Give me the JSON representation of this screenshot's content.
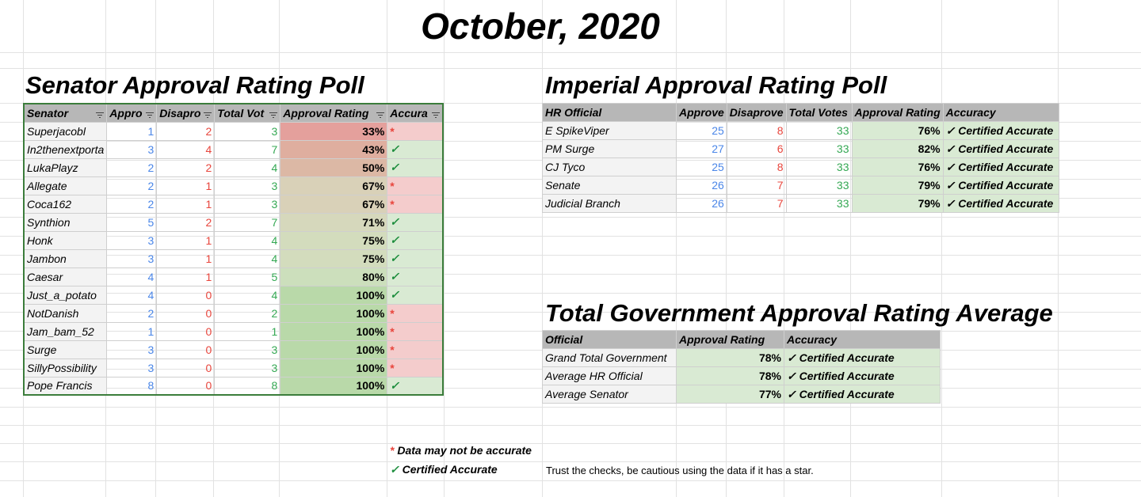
{
  "title": "October, 2020",
  "senate": {
    "heading": "Senator Approval Rating Poll",
    "columns": [
      "Senator",
      "Appro",
      "Disapro",
      "Total Vot",
      "Approval Rating",
      "Accura"
    ],
    "rows": [
      {
        "name": "Superjacobl",
        "approve": "1",
        "disapprove": "2",
        "total": "3",
        "rating": "33%",
        "acc": "*",
        "rating_color": "#e4a09c"
      },
      {
        "name": "In2thenextporta",
        "approve": "3",
        "disapprove": "4",
        "total": "7",
        "rating": "43%",
        "acc": "✓",
        "rating_color": "#dfae9f"
      },
      {
        "name": "LukaPlayz",
        "approve": "2",
        "disapprove": "2",
        "total": "4",
        "rating": "50%",
        "acc": "✓",
        "rating_color": "#dcb8a5"
      },
      {
        "name": "Allegate",
        "approve": "2",
        "disapprove": "1",
        "total": "3",
        "rating": "67%",
        "acc": "*",
        "rating_color": "#d9d1b8"
      },
      {
        "name": "Coca162",
        "approve": "2",
        "disapprove": "1",
        "total": "3",
        "rating": "67%",
        "acc": "*",
        "rating_color": "#d9d1b8"
      },
      {
        "name": "Synthion",
        "approve": "5",
        "disapprove": "2",
        "total": "7",
        "rating": "71%",
        "acc": "✓",
        "rating_color": "#d6d8bc"
      },
      {
        "name": "Honk",
        "approve": "3",
        "disapprove": "1",
        "total": "4",
        "rating": "75%",
        "acc": "✓",
        "rating_color": "#d3dcbd"
      },
      {
        "name": "Jambon",
        "approve": "3",
        "disapprove": "1",
        "total": "4",
        "rating": "75%",
        "acc": "✓",
        "rating_color": "#d3dcbd"
      },
      {
        "name": "Caesar",
        "approve": "4",
        "disapprove": "1",
        "total": "5",
        "rating": "80%",
        "acc": "✓",
        "rating_color": "#ccdfbc"
      },
      {
        "name": "Just_a_potato",
        "approve": "4",
        "disapprove": "0",
        "total": "4",
        "rating": "100%",
        "acc": "✓",
        "rating_color": "#b9d9a9"
      },
      {
        "name": "NotDanish",
        "approve": "2",
        "disapprove": "0",
        "total": "2",
        "rating": "100%",
        "acc": "*",
        "rating_color": "#b9d9a9"
      },
      {
        "name": "Jam_bam_52",
        "approve": "1",
        "disapprove": "0",
        "total": "1",
        "rating": "100%",
        "acc": "*",
        "rating_color": "#b9d9a9"
      },
      {
        "name": "Surge",
        "approve": "3",
        "disapprove": "0",
        "total": "3",
        "rating": "100%",
        "acc": "*",
        "rating_color": "#b9d9a9"
      },
      {
        "name": "SillyPossibility",
        "approve": "3",
        "disapprove": "0",
        "total": "3",
        "rating": "100%",
        "acc": "*",
        "rating_color": "#b9d9a9"
      },
      {
        "name": "Pope Francis",
        "approve": "8",
        "disapprove": "0",
        "total": "8",
        "rating": "100%",
        "acc": "✓",
        "rating_color": "#b9d9a9"
      }
    ]
  },
  "imperial": {
    "heading": "Imperial Approval Rating Poll",
    "columns": [
      "HR Official",
      "Approve",
      "Disaprove",
      "Total Votes",
      "Approval Rating",
      "Accuracy"
    ],
    "rows": [
      {
        "name": "E SpikeViper",
        "approve": "25",
        "disapprove": "8",
        "total": "33",
        "rating": "76%",
        "acc": "✓ Certified Accurate"
      },
      {
        "name": "PM Surge",
        "approve": "27",
        "disapprove": "6",
        "total": "33",
        "rating": "82%",
        "acc": "✓ Certified Accurate"
      },
      {
        "name": "CJ Tyco",
        "approve": "25",
        "disapprove": "8",
        "total": "33",
        "rating": "76%",
        "acc": "✓ Certified Accurate"
      },
      {
        "name": "Senate",
        "approve": "26",
        "disapprove": "7",
        "total": "33",
        "rating": "79%",
        "acc": "✓ Certified Accurate"
      },
      {
        "name": "Judicial Branch",
        "approve": "26",
        "disapprove": "7",
        "total": "33",
        "rating": "79%",
        "acc": "✓ Certified Accurate"
      }
    ]
  },
  "total": {
    "heading": "Total Government Approval Rating Average",
    "columns": [
      "Official",
      "Approval Rating",
      "Accuracy"
    ],
    "rows": [
      {
        "name": "Grand Total Government",
        "rating": "78%",
        "acc": "✓ Certified Accurate"
      },
      {
        "name": "Average HR Official",
        "rating": "78%",
        "acc": "✓ Certified Accurate"
      },
      {
        "name": "Average Senator",
        "rating": "77%",
        "acc": "✓ Certified Accurate"
      }
    ]
  },
  "legend": {
    "star_symbol": "*",
    "star_text": "Data may not be accurate",
    "check_symbol": "✓",
    "check_text": "Certified Accurate",
    "note": "Trust the checks, be cautious using the data if it has a star."
  },
  "colors": {
    "certified_bg": "#d9ead3",
    "star_bg": "#f4cccc",
    "header_bg": "#b7b7b7",
    "approve_text": "#4a86e8",
    "disapprove_text": "#e8453c",
    "total_text": "#34a853"
  }
}
